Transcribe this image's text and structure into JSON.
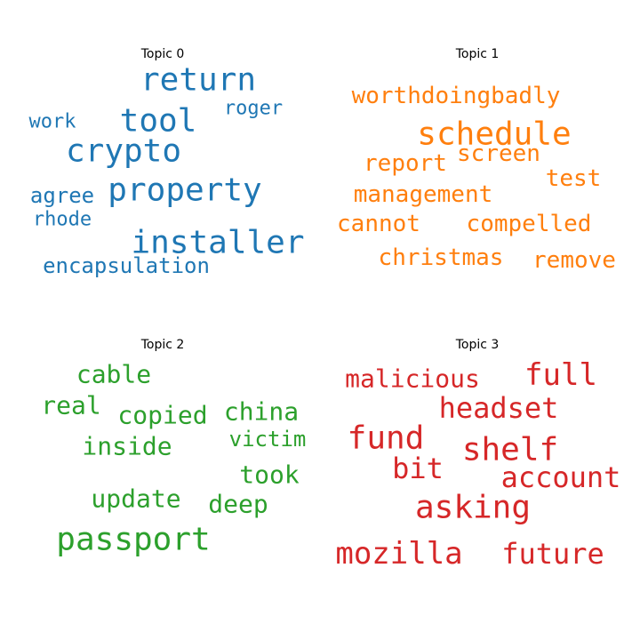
{
  "chart_data": {
    "type": "wordcloud",
    "topics": [
      {
        "title": "Topic 0",
        "color": "#1f77b4",
        "words": [
          "return",
          "tool",
          "roger",
          "work",
          "crypto",
          "agree",
          "property",
          "rhode",
          "installer",
          "encapsulation"
        ]
      },
      {
        "title": "Topic 1",
        "color": "#ff7f0e",
        "words": [
          "worthdoingbadly",
          "schedule",
          "screen",
          "report",
          "test",
          "management",
          "cannot",
          "compelled",
          "christmas",
          "remove"
        ]
      },
      {
        "title": "Topic 2",
        "color": "#2ca02c",
        "words": [
          "cable",
          "real",
          "copied",
          "china",
          "victim",
          "inside",
          "took",
          "update",
          "deep",
          "passport"
        ]
      },
      {
        "title": "Topic 3",
        "color": "#d62728",
        "words": [
          "malicious",
          "full",
          "headset",
          "fund",
          "shelf",
          "bit",
          "account",
          "asking",
          "mozilla",
          "future"
        ]
      }
    ]
  }
}
